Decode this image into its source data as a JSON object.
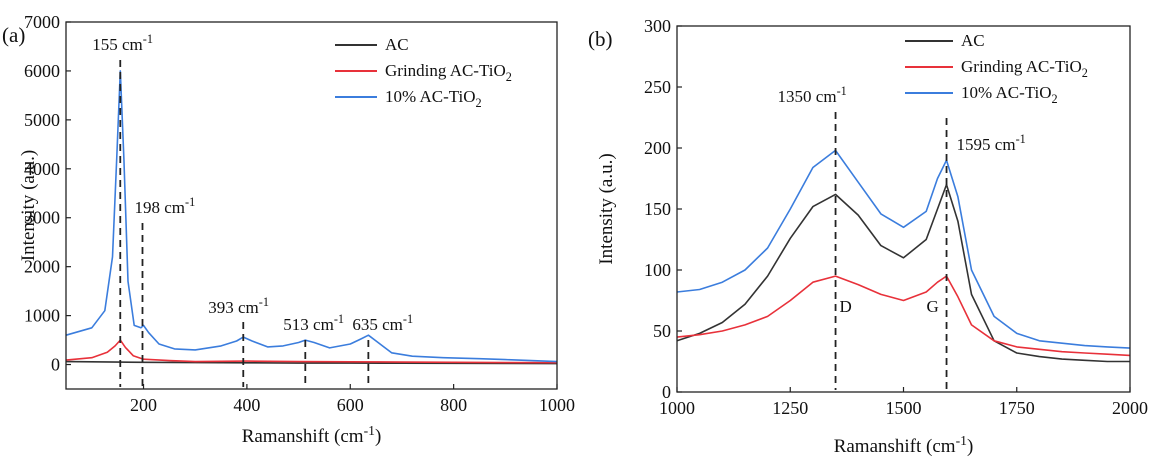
{
  "chart_data": [
    {
      "type": "line",
      "panel_label": "(a)",
      "xlabel": "Ramanshift (cm⁻¹)",
      "ylabel": "Intensity (a.u.)",
      "xlim": [
        50,
        1000
      ],
      "ylim": [
        -500,
        7000
      ],
      "xticks": [
        200,
        400,
        600,
        800,
        1000
      ],
      "yticks": [
        0,
        1000,
        2000,
        3000,
        4000,
        5000,
        6000,
        7000
      ],
      "grid": false,
      "legend": "top-right",
      "series": [
        {
          "name": "AC",
          "color": "#333333",
          "x": [
            50,
            100,
            150,
            200,
            300,
            400,
            500,
            600,
            700,
            800,
            900,
            1000
          ],
          "y": [
            60,
            55,
            50,
            45,
            40,
            35,
            30,
            30,
            28,
            25,
            22,
            20
          ]
        },
        {
          "name": "Grinding AC-TiO₂",
          "color": "#e8313a",
          "x": [
            50,
            100,
            130,
            145,
            155,
            165,
            180,
            200,
            250,
            300,
            400,
            500,
            600,
            700,
            800,
            900,
            1000
          ],
          "y": [
            90,
            140,
            250,
            380,
            500,
            350,
            180,
            110,
            80,
            60,
            70,
            60,
            55,
            50,
            45,
            40,
            38
          ]
        },
        {
          "name": "10% AC-TiO₂",
          "color": "#3b7ddd",
          "x": [
            50,
            100,
            125,
            140,
            148,
            155,
            162,
            170,
            182,
            195,
            200,
            210,
            230,
            260,
            300,
            350,
            380,
            393,
            410,
            440,
            470,
            500,
            513,
            530,
            560,
            600,
            620,
            635,
            650,
            680,
            720,
            780,
            850,
            900,
            950,
            1000
          ],
          "y": [
            600,
            750,
            1100,
            2200,
            4200,
            6000,
            4200,
            1700,
            800,
            750,
            800,
            650,
            420,
            320,
            300,
            380,
            480,
            560,
            480,
            360,
            380,
            450,
            500,
            450,
            340,
            420,
            520,
            600,
            480,
            240,
            170,
            140,
            120,
            100,
            80,
            60
          ]
        }
      ],
      "annotations": [
        {
          "x": 155,
          "label": "155 cm⁻¹"
        },
        {
          "x": 198,
          "label": "198 cm⁻¹"
        },
        {
          "x": 393,
          "label": "393 cm⁻¹"
        },
        {
          "x": 513,
          "label": "513 cm⁻¹"
        },
        {
          "x": 635,
          "label": "635 cm⁻¹"
        }
      ]
    },
    {
      "type": "line",
      "panel_label": "(b)",
      "xlabel": "Ramanshift (cm⁻¹)",
      "ylabel": "Intensity (a.u.)",
      "xlim": [
        1000,
        2000
      ],
      "ylim": [
        0,
        300
      ],
      "xticks": [
        1000,
        1250,
        1500,
        1750,
        2000
      ],
      "yticks": [
        0,
        50,
        100,
        150,
        200,
        250,
        300
      ],
      "grid": false,
      "legend": "top-center",
      "series": [
        {
          "name": "AC",
          "color": "#333333",
          "x": [
            1000,
            1050,
            1100,
            1150,
            1200,
            1250,
            1300,
            1350,
            1400,
            1450,
            1500,
            1550,
            1575,
            1595,
            1620,
            1650,
            1700,
            1750,
            1800,
            1850,
            1900,
            1950,
            2000
          ],
          "y": [
            42,
            48,
            57,
            72,
            95,
            126,
            152,
            162,
            145,
            120,
            110,
            125,
            150,
            170,
            140,
            80,
            42,
            32,
            29,
            27,
            26,
            25,
            25
          ]
        },
        {
          "name": "Grinding AC-TiO₂",
          "color": "#e8313a",
          "x": [
            1000,
            1050,
            1100,
            1150,
            1200,
            1250,
            1300,
            1350,
            1400,
            1450,
            1500,
            1550,
            1575,
            1595,
            1620,
            1650,
            1700,
            1750,
            1800,
            1850,
            1900,
            1950,
            2000
          ],
          "y": [
            45,
            47,
            50,
            55,
            62,
            75,
            90,
            95,
            88,
            80,
            75,
            82,
            90,
            95,
            78,
            55,
            42,
            37,
            35,
            33,
            32,
            31,
            30
          ]
        },
        {
          "name": "10% AC-TiO₂",
          "color": "#3b7ddd",
          "x": [
            1000,
            1050,
            1100,
            1150,
            1200,
            1250,
            1300,
            1350,
            1400,
            1450,
            1500,
            1550,
            1575,
            1595,
            1620,
            1650,
            1700,
            1750,
            1800,
            1850,
            1900,
            1950,
            2000
          ],
          "y": [
            82,
            84,
            90,
            100,
            118,
            150,
            184,
            198,
            172,
            146,
            135,
            148,
            175,
            190,
            160,
            100,
            62,
            48,
            42,
            40,
            38,
            37,
            36
          ]
        }
      ],
      "annotations": [
        {
          "x": 1350,
          "label": "1350 cm⁻¹",
          "band": "D"
        },
        {
          "x": 1595,
          "label": "1595 cm⁻¹",
          "band": "G"
        }
      ]
    }
  ]
}
